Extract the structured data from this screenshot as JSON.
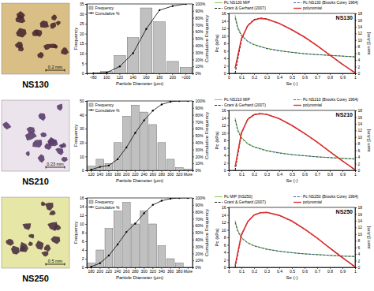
{
  "images": [
    {
      "label": "NS130",
      "scale_bar": "0.2 mm"
    },
    {
      "label": "NS210",
      "scale_bar": "0.23 mm"
    },
    {
      "label": "NS250",
      "scale_bar": "0.5 mm"
    }
  ],
  "chart_data": [
    {
      "type": "bar",
      "categories": [
        "<80",
        "100",
        "120",
        "140",
        "160",
        "180",
        "200",
        ">200"
      ],
      "series": [
        {
          "name": "Frequency",
          "type": "bar",
          "color": "#c0c0c0",
          "values": [
            0,
            1,
            9,
            18,
            33,
            26,
            6,
            3
          ]
        },
        {
          "name": "Cumulative %",
          "type": "line",
          "axis": "y2",
          "color": "#000000",
          "marker": "circle",
          "values": [
            0,
            1,
            10,
            29,
            64,
            91,
            97,
            100
          ]
        }
      ],
      "x_label": "Particle Diameter (μm)",
      "y_label": "Frequency",
      "y2_label": "Cumulative Frequency",
      "ylim": [
        0,
        35
      ],
      "yticks": [
        0,
        5,
        10,
        15,
        20,
        25,
        30,
        35
      ],
      "y2lim": [
        0,
        100
      ],
      "y2ticks": [
        {
          "value": 0,
          "label": "0%"
        },
        {
          "value": 10,
          "label": "10%"
        },
        {
          "value": 20,
          "label": "20%"
        },
        {
          "value": 30,
          "label": "30%"
        },
        {
          "value": 40,
          "label": "40%"
        },
        {
          "value": 50,
          "label": "50%"
        },
        {
          "value": 60,
          "label": "60%"
        },
        {
          "value": 70,
          "label": "70%"
        },
        {
          "value": 80,
          "label": "80%"
        },
        {
          "value": 90,
          "label": "90%"
        },
        {
          "value": 100,
          "label": "100%"
        }
      ],
      "legend": "upper left"
    },
    {
      "type": "line",
      "title": "NS130",
      "x_label": "Se (-)",
      "y_label": "Pc (kPa)",
      "y2_label": "awn [1/cm]",
      "xlim": [
        0,
        1
      ],
      "xticks": [
        0,
        0.1,
        0.2,
        0.3,
        0.4,
        0.5,
        0.6,
        0.7,
        0.8,
        0.9,
        1
      ],
      "ylim": [
        0,
        16
      ],
      "yticks": [
        0,
        2,
        4,
        6,
        8,
        10,
        12,
        14,
        16
      ],
      "y2lim": [
        0,
        18
      ],
      "y2ticks": [
        0,
        2,
        4,
        6,
        8,
        10,
        12,
        14,
        16,
        18
      ],
      "legend": "top",
      "series": [
        {
          "name": "Pc NS130 MIP",
          "color": "#7fbf3f",
          "line_style": "solid",
          "x": [
            0.05,
            0.07,
            0.1,
            0.15,
            0.2,
            0.3,
            0.4,
            0.5,
            0.6,
            0.7,
            0.8,
            0.9,
            1
          ],
          "values": [
            15.5,
            12.5,
            10.3,
            8.6,
            7.7,
            6.7,
            6.1,
            5.6,
            5.3,
            5.0,
            4.8,
            4.6,
            4.4
          ]
        },
        {
          "name": "Pc NS130 (Brooks Corey 1964)",
          "color": "#2e4d8f",
          "line_style": "dashed",
          "x": [
            0.05,
            0.07,
            0.1,
            0.15,
            0.2,
            0.3,
            0.4,
            0.5,
            0.6,
            0.7,
            0.8,
            0.9,
            1
          ],
          "values": [
            14.8,
            12,
            10,
            8.5,
            7.6,
            6.6,
            6.0,
            5.6,
            5.2,
            5.0,
            4.8,
            4.6,
            4.4
          ]
        },
        {
          "name": "Grant & Gerhard (2007)",
          "axis": "y2",
          "color": "#000000",
          "line_style": "dashed",
          "x": [
            0.05,
            0.1,
            0.15,
            0.2,
            0.25,
            0.3,
            0.4,
            0.5,
            0.6,
            0.7,
            0.8,
            0.9,
            1
          ],
          "values": [
            0,
            10,
            14.5,
            16.2,
            16.6,
            16.4,
            15,
            13,
            10.8,
            8.2,
            5.6,
            2.8,
            0
          ]
        },
        {
          "name": "polynomial",
          "axis": "y2",
          "color": "#e03030",
          "line_style": "solid",
          "x": [
            0.05,
            0.1,
            0.15,
            0.2,
            0.25,
            0.3,
            0.4,
            0.5,
            0.6,
            0.7,
            0.8,
            0.9,
            1
          ],
          "values": [
            1.5,
            10.4,
            14.3,
            16,
            16.5,
            16.3,
            15,
            13.1,
            10.9,
            8.3,
            5.5,
            2.7,
            0.2
          ]
        }
      ]
    },
    {
      "type": "bar",
      "categories": [
        "120",
        "140",
        "160",
        "180",
        "200",
        "220",
        "240",
        "260",
        "280",
        "300",
        "320",
        "More"
      ],
      "series": [
        {
          "name": "Frequency",
          "type": "bar",
          "color": "#c0c0c0",
          "values": [
            3,
            8,
            5,
            20,
            39,
            47,
            42,
            33,
            20,
            8,
            2,
            1
          ]
        },
        {
          "name": "Cumulative %",
          "type": "line",
          "axis": "y2",
          "color": "#000000",
          "marker": "circle",
          "values": [
            1,
            5,
            7,
            16,
            33,
            54,
            72,
            86,
            95,
            99,
            100,
            100
          ]
        }
      ],
      "x_label": "Particle Diameter (μm)",
      "y_label": "Frequency",
      "y2_label": "Cumulative Frequency",
      "ylim": [
        0,
        50
      ],
      "yticks": [
        0,
        10,
        20,
        30,
        40,
        50
      ],
      "y2lim": [
        0,
        100
      ],
      "y2ticks": [
        {
          "value": 0,
          "label": "0%"
        },
        {
          "value": 10,
          "label": "10%"
        },
        {
          "value": 20,
          "label": "20%"
        },
        {
          "value": 30,
          "label": "30%"
        },
        {
          "value": 40,
          "label": "40%"
        },
        {
          "value": 50,
          "label": "50%"
        },
        {
          "value": 60,
          "label": "60%"
        },
        {
          "value": 70,
          "label": "70%"
        },
        {
          "value": 80,
          "label": "80%"
        },
        {
          "value": 90,
          "label": "90%"
        },
        {
          "value": 100,
          "label": "100%"
        }
      ],
      "legend": "upper left"
    },
    {
      "type": "line",
      "title": "NS210",
      "x_label": "Se (-)",
      "y_label": "Pc (kPa)",
      "y2_label": "awn [1/cm]",
      "xlim": [
        0,
        1
      ],
      "xticks": [
        0,
        0.1,
        0.2,
        0.3,
        0.4,
        0.5,
        0.6,
        0.7,
        0.8,
        0.9,
        1
      ],
      "ylim": [
        0,
        16
      ],
      "yticks": [
        0,
        2,
        4,
        6,
        8,
        10,
        12,
        14,
        16
      ],
      "y2lim": [
        0,
        18
      ],
      "y2ticks": [
        0,
        2,
        4,
        6,
        8,
        10,
        12,
        14,
        16,
        18
      ],
      "legend": "top",
      "series": [
        {
          "name": "Pc NS210 MIP",
          "color": "#7fbf3f",
          "line_style": "solid",
          "x": [
            0.05,
            0.07,
            0.1,
            0.15,
            0.2,
            0.3,
            0.4,
            0.5,
            0.6,
            0.7,
            0.8,
            0.9,
            1
          ],
          "values": [
            14,
            11,
            8.8,
            7.2,
            6.3,
            5.3,
            4.7,
            4.2,
            3.9,
            3.6,
            3.4,
            3.2,
            3.1
          ]
        },
        {
          "name": "Pc NS210 (Brooks Corey 1964)",
          "color": "#2e4d8f",
          "line_style": "dashed",
          "x": [
            0.05,
            0.07,
            0.1,
            0.15,
            0.2,
            0.3,
            0.4,
            0.5,
            0.6,
            0.7,
            0.8,
            0.9,
            1
          ],
          "values": [
            13.5,
            10.6,
            8.6,
            7.0,
            6.2,
            5.2,
            4.6,
            4.2,
            3.9,
            3.6,
            3.4,
            3.2,
            3.0
          ]
        },
        {
          "name": "Grant & Gerhard (2007)",
          "axis": "y2",
          "color": "#000000",
          "line_style": "dashed",
          "x": [
            0.05,
            0.1,
            0.15,
            0.2,
            0.25,
            0.3,
            0.4,
            0.5,
            0.6,
            0.7,
            0.8,
            0.9,
            1
          ],
          "values": [
            0,
            11,
            15.5,
            16.8,
            17.1,
            16.8,
            15.5,
            13.4,
            11,
            8.4,
            5.7,
            2.9,
            0
          ]
        },
        {
          "name": "polynomial",
          "axis": "y2",
          "color": "#e03030",
          "line_style": "solid",
          "x": [
            0.05,
            0.1,
            0.15,
            0.2,
            0.25,
            0.3,
            0.4,
            0.5,
            0.6,
            0.7,
            0.8,
            0.9,
            1
          ],
          "values": [
            1,
            11.3,
            15.3,
            16.7,
            17,
            16.8,
            15.5,
            13.5,
            11.1,
            8.5,
            5.6,
            2.8,
            0.2
          ]
        }
      ]
    },
    {
      "type": "bar",
      "categories": [
        "180",
        "200",
        "220",
        "240",
        "260",
        "280",
        "300",
        "320",
        "340",
        "360",
        "380",
        "More"
      ],
      "series": [
        {
          "name": "Frequency",
          "type": "bar",
          "color": "#c0c0c0",
          "values": [
            1,
            4,
            9,
            13,
            15,
            10,
            13,
            10,
            5,
            2,
            1,
            0
          ]
        },
        {
          "name": "Cumulative %",
          "type": "line",
          "axis": "y2",
          "color": "#000000",
          "marker": "circle",
          "values": [
            1,
            6,
            17,
            33,
            51,
            63,
            78,
            90,
            96,
            99,
            100,
            100
          ]
        }
      ],
      "x_label": "Particle Diameter (μm)",
      "y_label": "Frequency",
      "y2_label": "Cumulative Frequency",
      "ylim": [
        0,
        16
      ],
      "yticks": [
        0,
        2,
        4,
        6,
        8,
        10,
        12,
        14,
        16
      ],
      "y2lim": [
        0,
        100
      ],
      "y2ticks": [
        {
          "value": 0,
          "label": "0%"
        },
        {
          "value": 10,
          "label": "10%"
        },
        {
          "value": 20,
          "label": "20%"
        },
        {
          "value": 30,
          "label": "30%"
        },
        {
          "value": 40,
          "label": "40%"
        },
        {
          "value": 50,
          "label": "50%"
        },
        {
          "value": 60,
          "label": "60%"
        },
        {
          "value": 70,
          "label": "70%"
        },
        {
          "value": 80,
          "label": "80%"
        },
        {
          "value": 90,
          "label": "90%"
        },
        {
          "value": 100,
          "label": "100%"
        }
      ],
      "legend": "upper left"
    },
    {
      "type": "line",
      "title": "NS250",
      "x_label": "Se (-)",
      "y_label": "Pc (kPa)",
      "y2_label": "awn [1/cm]",
      "xlim": [
        0,
        1
      ],
      "xticks": [
        0,
        0.1,
        0.2,
        0.3,
        0.4,
        0.5,
        0.6,
        0.7,
        0.8,
        0.9,
        1
      ],
      "ylim": [
        0,
        16
      ],
      "yticks": [
        0,
        2,
        4,
        6,
        8,
        10,
        12,
        14,
        16
      ],
      "y2lim": [
        0,
        18
      ],
      "y2ticks": [
        0,
        2,
        4,
        6,
        8,
        10,
        12,
        14,
        16,
        18
      ],
      "legend": "top",
      "series": [
        {
          "name": "Pc MIP (NS250)",
          "color": "#7fbf3f",
          "line_style": "solid",
          "x": [
            0.05,
            0.07,
            0.1,
            0.15,
            0.2,
            0.3,
            0.4,
            0.5,
            0.6,
            0.7,
            0.8,
            0.9,
            1
          ],
          "values": [
            12.5,
            10,
            8,
            6.6,
            5.8,
            4.9,
            4.3,
            3.9,
            3.6,
            3.4,
            3.2,
            3.0,
            2.9
          ]
        },
        {
          "name": "Pc NS250 (Brooks Corey 1964)",
          "color": "#2e4d8f",
          "line_style": "dashed",
          "x": [
            0.05,
            0.07,
            0.1,
            0.15,
            0.2,
            0.3,
            0.4,
            0.5,
            0.6,
            0.7,
            0.8,
            0.9,
            1
          ],
          "values": [
            12,
            9.6,
            7.8,
            6.5,
            5.7,
            4.8,
            4.3,
            3.9,
            3.6,
            3.4,
            3.2,
            3.0,
            2.9
          ]
        },
        {
          "name": "Grant & Gerhard (2007)",
          "axis": "y2",
          "color": "#000000",
          "line_style": "dashed",
          "x": [
            0.05,
            0.1,
            0.15,
            0.2,
            0.25,
            0.3,
            0.4,
            0.5,
            0.6,
            0.7,
            0.8,
            0.9,
            1
          ],
          "values": [
            0,
            9.5,
            13.8,
            15.8,
            16.4,
            16.5,
            15.6,
            13.8,
            11.4,
            8.7,
            5.9,
            3,
            0
          ]
        },
        {
          "name": "polynomial",
          "axis": "y2",
          "color": "#e03030",
          "line_style": "solid",
          "x": [
            0.05,
            0.1,
            0.15,
            0.2,
            0.25,
            0.3,
            0.4,
            0.5,
            0.6,
            0.7,
            0.8,
            0.9,
            1
          ],
          "values": [
            0.5,
            9.8,
            13.7,
            15.7,
            16.4,
            16.5,
            15.6,
            13.9,
            11.5,
            8.8,
            5.8,
            2.9,
            0.2
          ]
        }
      ]
    }
  ]
}
